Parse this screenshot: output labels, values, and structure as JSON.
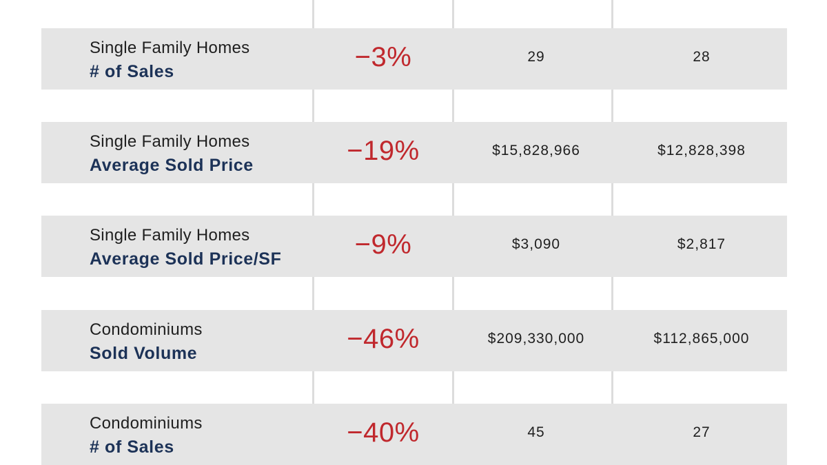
{
  "rows": [
    {
      "category": "Single Family Homes",
      "metric": "# of Sales",
      "change": "−3%",
      "value_a": "29",
      "value_b": "28"
    },
    {
      "category": "Single Family Homes",
      "metric": "Average Sold Price",
      "change": "−19%",
      "value_a": "$15,828,966",
      "value_b": "$12,828,398"
    },
    {
      "category": "Single Family Homes",
      "metric": "Average Sold Price/SF",
      "change": "−9%",
      "value_a": "$3,090",
      "value_b": "$2,817"
    },
    {
      "category": "Condominiums",
      "metric": "Sold Volume",
      "change": "−46%",
      "value_a": "$209,330,000",
      "value_b": "$112,865,000"
    },
    {
      "category": "Condominiums",
      "metric": "# of Sales",
      "change": "−40%",
      "value_a": "45",
      "value_b": "27"
    }
  ],
  "colors": {
    "row_background": "#e5e5e5",
    "divider": "#dcdcdc",
    "change_negative": "#c0282d",
    "metric_label": "#1c3257"
  }
}
